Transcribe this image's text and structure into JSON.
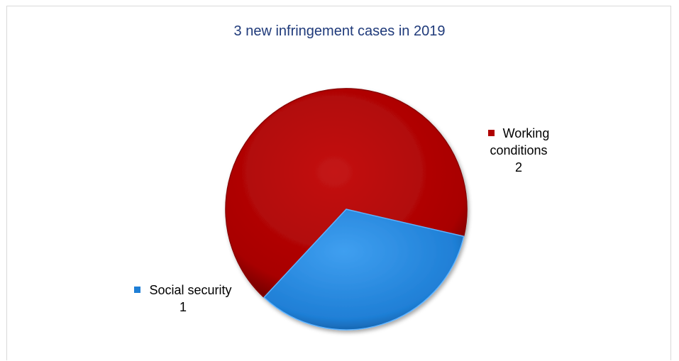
{
  "chart_data": {
    "type": "pie",
    "title": "3 new infringement cases in 2019",
    "slices": [
      {
        "label": "Working conditions",
        "value": 2,
        "color": "#b00000"
      },
      {
        "label": "Social security",
        "value": 1,
        "color": "#1f7fd6"
      }
    ]
  }
}
